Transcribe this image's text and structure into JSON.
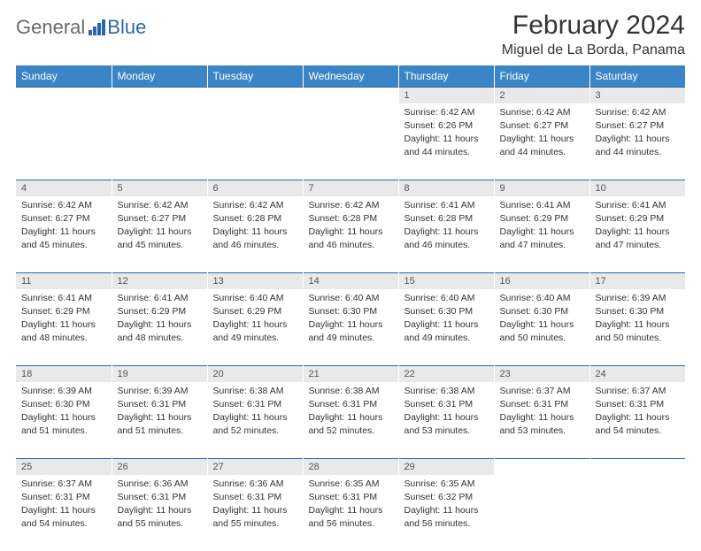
{
  "logo": {
    "text1": "General",
    "text2": "Blue"
  },
  "title": "February 2024",
  "location": "Miguel de La Borda, Panama",
  "colors": {
    "header_bg": "#3b85c6",
    "header_text": "#ffffff",
    "daynum_bg": "#e9e9e9",
    "rule": "#2968aa",
    "brand_gray": "#6a6a6a",
    "brand_blue": "#2968aa"
  },
  "weekdays": [
    "Sunday",
    "Monday",
    "Tuesday",
    "Wednesday",
    "Thursday",
    "Friday",
    "Saturday"
  ],
  "weeks": [
    [
      null,
      null,
      null,
      null,
      {
        "n": "1",
        "sr": "Sunrise: 6:42 AM",
        "ss": "Sunset: 6:26 PM",
        "dl": "Daylight: 11 hours and 44 minutes."
      },
      {
        "n": "2",
        "sr": "Sunrise: 6:42 AM",
        "ss": "Sunset: 6:27 PM",
        "dl": "Daylight: 11 hours and 44 minutes."
      },
      {
        "n": "3",
        "sr": "Sunrise: 6:42 AM",
        "ss": "Sunset: 6:27 PM",
        "dl": "Daylight: 11 hours and 44 minutes."
      }
    ],
    [
      {
        "n": "4",
        "sr": "Sunrise: 6:42 AM",
        "ss": "Sunset: 6:27 PM",
        "dl": "Daylight: 11 hours and 45 minutes."
      },
      {
        "n": "5",
        "sr": "Sunrise: 6:42 AM",
        "ss": "Sunset: 6:27 PM",
        "dl": "Daylight: 11 hours and 45 minutes."
      },
      {
        "n": "6",
        "sr": "Sunrise: 6:42 AM",
        "ss": "Sunset: 6:28 PM",
        "dl": "Daylight: 11 hours and 46 minutes."
      },
      {
        "n": "7",
        "sr": "Sunrise: 6:42 AM",
        "ss": "Sunset: 6:28 PM",
        "dl": "Daylight: 11 hours and 46 minutes."
      },
      {
        "n": "8",
        "sr": "Sunrise: 6:41 AM",
        "ss": "Sunset: 6:28 PM",
        "dl": "Daylight: 11 hours and 46 minutes."
      },
      {
        "n": "9",
        "sr": "Sunrise: 6:41 AM",
        "ss": "Sunset: 6:29 PM",
        "dl": "Daylight: 11 hours and 47 minutes."
      },
      {
        "n": "10",
        "sr": "Sunrise: 6:41 AM",
        "ss": "Sunset: 6:29 PM",
        "dl": "Daylight: 11 hours and 47 minutes."
      }
    ],
    [
      {
        "n": "11",
        "sr": "Sunrise: 6:41 AM",
        "ss": "Sunset: 6:29 PM",
        "dl": "Daylight: 11 hours and 48 minutes."
      },
      {
        "n": "12",
        "sr": "Sunrise: 6:41 AM",
        "ss": "Sunset: 6:29 PM",
        "dl": "Daylight: 11 hours and 48 minutes."
      },
      {
        "n": "13",
        "sr": "Sunrise: 6:40 AM",
        "ss": "Sunset: 6:29 PM",
        "dl": "Daylight: 11 hours and 49 minutes."
      },
      {
        "n": "14",
        "sr": "Sunrise: 6:40 AM",
        "ss": "Sunset: 6:30 PM",
        "dl": "Daylight: 11 hours and 49 minutes."
      },
      {
        "n": "15",
        "sr": "Sunrise: 6:40 AM",
        "ss": "Sunset: 6:30 PM",
        "dl": "Daylight: 11 hours and 49 minutes."
      },
      {
        "n": "16",
        "sr": "Sunrise: 6:40 AM",
        "ss": "Sunset: 6:30 PM",
        "dl": "Daylight: 11 hours and 50 minutes."
      },
      {
        "n": "17",
        "sr": "Sunrise: 6:39 AM",
        "ss": "Sunset: 6:30 PM",
        "dl": "Daylight: 11 hours and 50 minutes."
      }
    ],
    [
      {
        "n": "18",
        "sr": "Sunrise: 6:39 AM",
        "ss": "Sunset: 6:30 PM",
        "dl": "Daylight: 11 hours and 51 minutes."
      },
      {
        "n": "19",
        "sr": "Sunrise: 6:39 AM",
        "ss": "Sunset: 6:31 PM",
        "dl": "Daylight: 11 hours and 51 minutes."
      },
      {
        "n": "20",
        "sr": "Sunrise: 6:38 AM",
        "ss": "Sunset: 6:31 PM",
        "dl": "Daylight: 11 hours and 52 minutes."
      },
      {
        "n": "21",
        "sr": "Sunrise: 6:38 AM",
        "ss": "Sunset: 6:31 PM",
        "dl": "Daylight: 11 hours and 52 minutes."
      },
      {
        "n": "22",
        "sr": "Sunrise: 6:38 AM",
        "ss": "Sunset: 6:31 PM",
        "dl": "Daylight: 11 hours and 53 minutes."
      },
      {
        "n": "23",
        "sr": "Sunrise: 6:37 AM",
        "ss": "Sunset: 6:31 PM",
        "dl": "Daylight: 11 hours and 53 minutes."
      },
      {
        "n": "24",
        "sr": "Sunrise: 6:37 AM",
        "ss": "Sunset: 6:31 PM",
        "dl": "Daylight: 11 hours and 54 minutes."
      }
    ],
    [
      {
        "n": "25",
        "sr": "Sunrise: 6:37 AM",
        "ss": "Sunset: 6:31 PM",
        "dl": "Daylight: 11 hours and 54 minutes."
      },
      {
        "n": "26",
        "sr": "Sunrise: 6:36 AM",
        "ss": "Sunset: 6:31 PM",
        "dl": "Daylight: 11 hours and 55 minutes."
      },
      {
        "n": "27",
        "sr": "Sunrise: 6:36 AM",
        "ss": "Sunset: 6:31 PM",
        "dl": "Daylight: 11 hours and 55 minutes."
      },
      {
        "n": "28",
        "sr": "Sunrise: 6:35 AM",
        "ss": "Sunset: 6:31 PM",
        "dl": "Daylight: 11 hours and 56 minutes."
      },
      {
        "n": "29",
        "sr": "Sunrise: 6:35 AM",
        "ss": "Sunset: 6:32 PM",
        "dl": "Daylight: 11 hours and 56 minutes."
      },
      null,
      null
    ]
  ]
}
